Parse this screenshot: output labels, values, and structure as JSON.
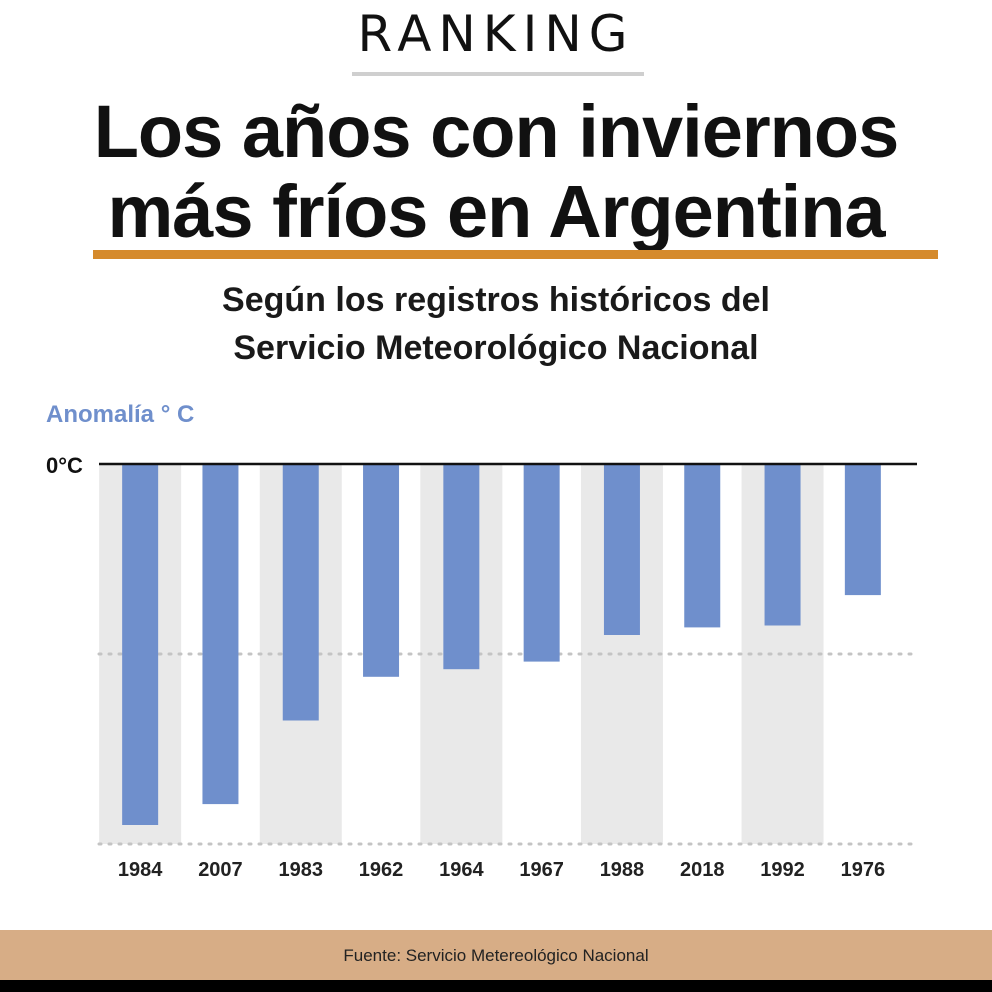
{
  "header": {
    "kicker": "RANKING",
    "title_line1": "Los años con inviernos",
    "title_line2": "más fríos en Argentina",
    "subtitle_line1": "Según los registros históricos del",
    "subtitle_line2": "Servicio Meteorológico Nacional"
  },
  "footer": {
    "source": "Fuente: Servicio Metereológico Nacional"
  },
  "colors": {
    "bar": "#6f8fcc",
    "band": "#e9e9e9",
    "accent": "#d58a2c",
    "ylabel": "#6f8fcc",
    "footer_bg": "#d7ad86"
  },
  "chart_data": {
    "type": "bar",
    "ylabel": "Anomalía ° C",
    "zero_label": "0°C",
    "categories": [
      "1984",
      "2007",
      "1983",
      "1962",
      "1964",
      "1967",
      "1988",
      "2018",
      "1992",
      "1976"
    ],
    "values": [
      -1.9,
      -1.79,
      -1.35,
      -1.12,
      -1.08,
      -1.04,
      -0.9,
      -0.86,
      -0.85,
      -0.69
    ],
    "ylim": [
      -2.0,
      0
    ],
    "gridlines": [
      -1.0,
      -2.0
    ],
    "grid": true,
    "legend": "none"
  }
}
